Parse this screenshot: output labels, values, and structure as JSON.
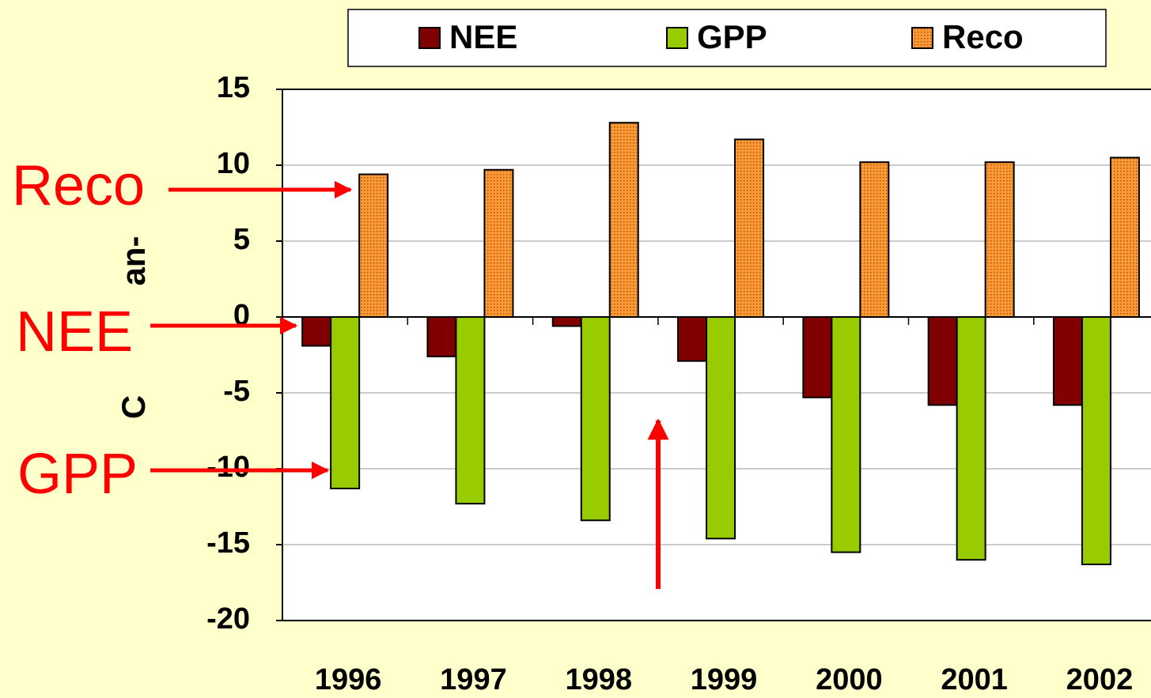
{
  "chart_data": {
    "type": "bar",
    "categories": [
      "1996",
      "1997",
      "1998",
      "1999",
      "2000",
      "2001",
      "2002"
    ],
    "series": [
      {
        "name": "NEE",
        "color": "#800000",
        "values": [
          -1.9,
          -2.6,
          -0.6,
          -2.9,
          -5.3,
          -5.8,
          -5.8
        ]
      },
      {
        "name": "GPP",
        "color": "#99cc00",
        "values": [
          -11.3,
          -12.3,
          -13.4,
          -14.6,
          -15.5,
          -16.0,
          -16.3
        ]
      },
      {
        "name": "Reco",
        "color": "#ff9933",
        "values": [
          9.4,
          9.7,
          12.8,
          11.7,
          10.2,
          10.2,
          10.5
        ]
      }
    ],
    "ylim": [
      -20,
      15
    ],
    "yticks": [
      -20,
      -15,
      -10,
      -5,
      0,
      5,
      10,
      15
    ],
    "grid": true,
    "y_label_fragments": [
      "C",
      "an-"
    ],
    "annotations": [
      "Reco",
      "NEE",
      "GPP"
    ]
  }
}
